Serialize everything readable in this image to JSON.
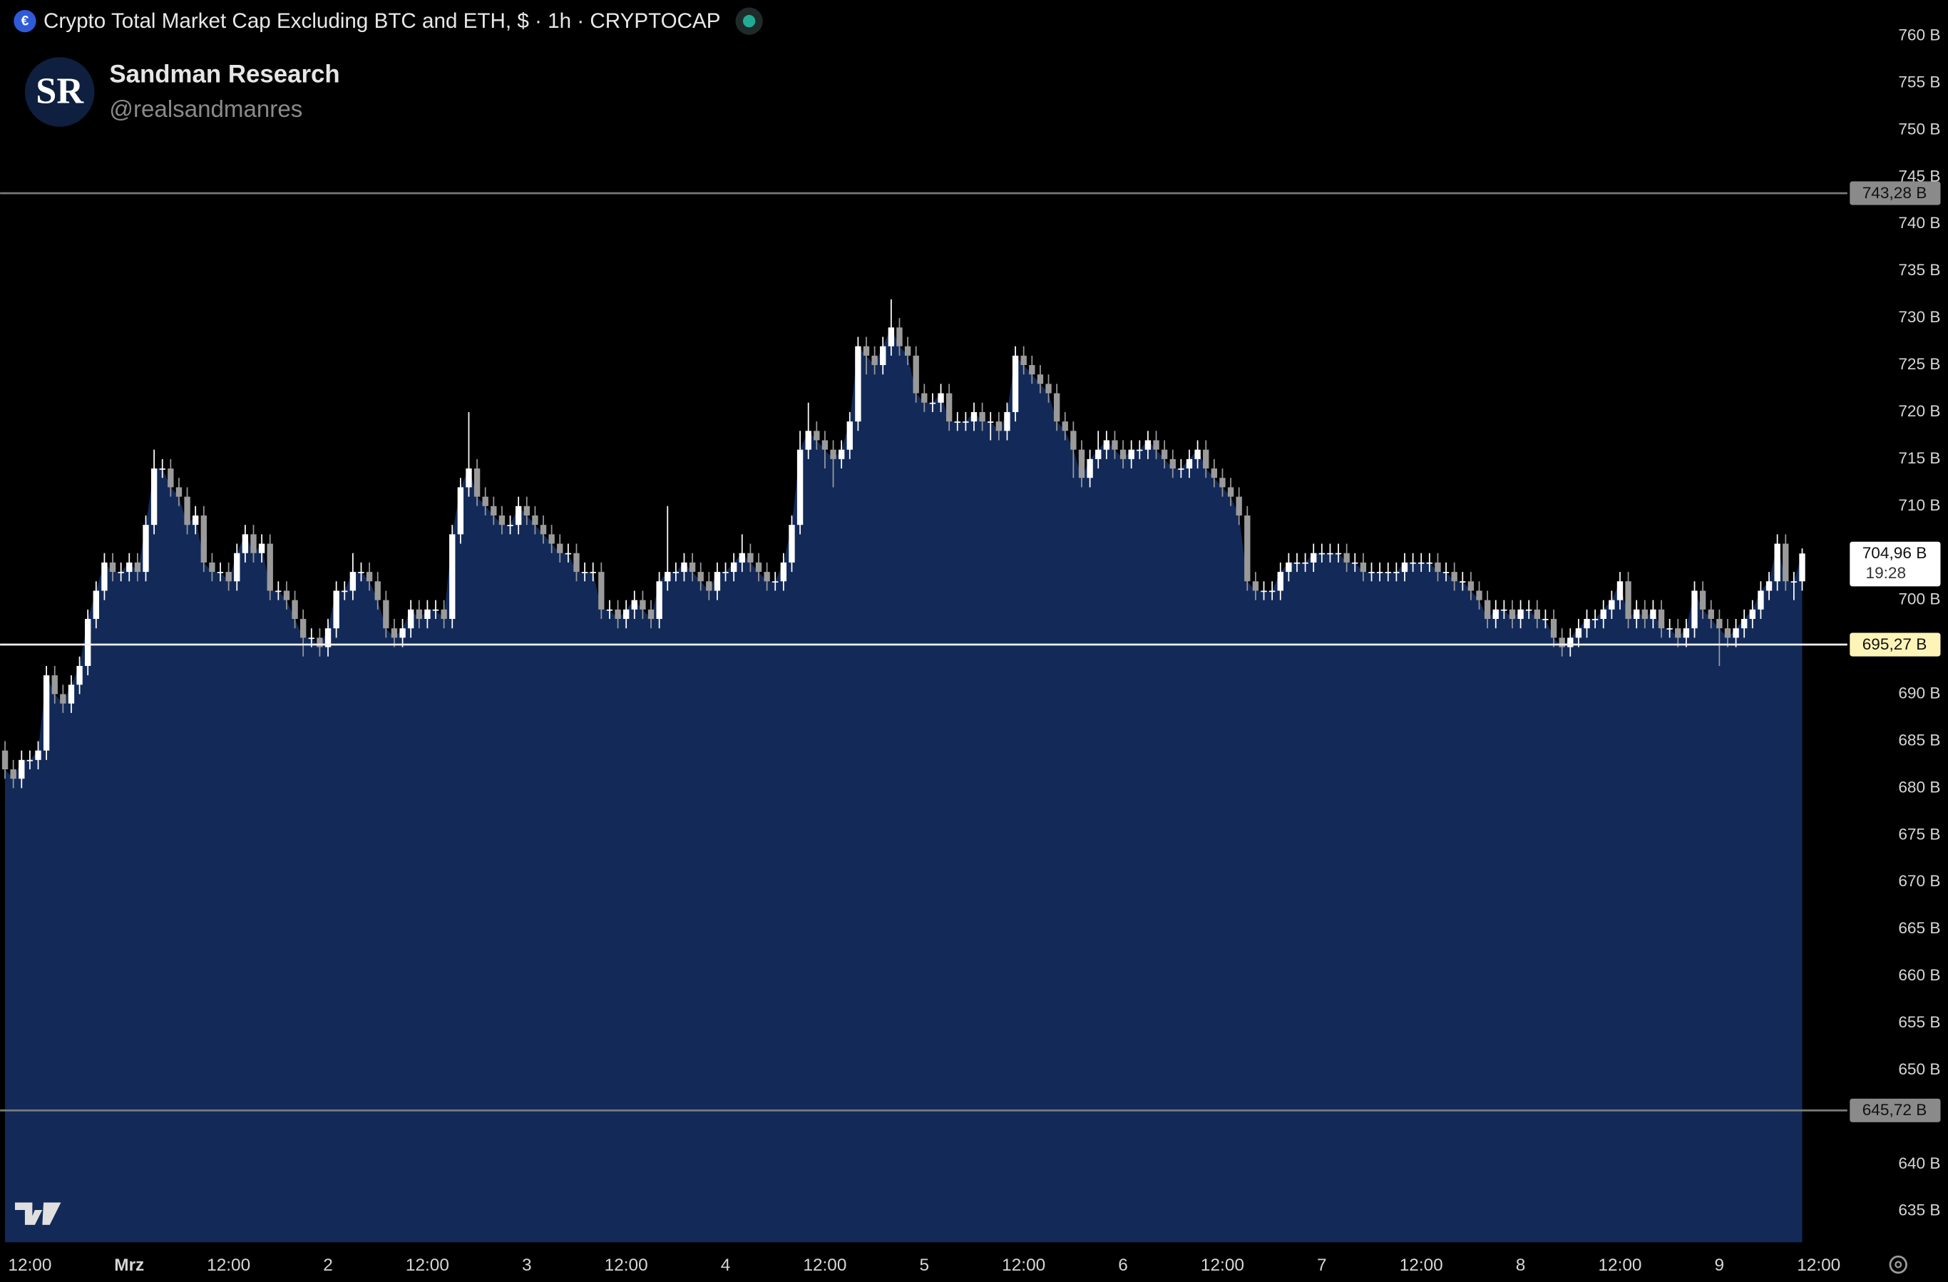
{
  "chart_data": {
    "type": "candlestick",
    "title": "Crypto Total Market Cap Excluding BTC and ETH, $ · 1h · CRYPTOCAP",
    "author": "Sandman Research",
    "handle": "@realsandmanres",
    "up_color": "#ffffff",
    "down_color": "#9a9a9a",
    "area_color": "#132a58",
    "open": [
      684,
      682,
      681,
      683,
      683,
      684,
      692,
      690,
      689,
      691,
      693,
      698,
      701,
      704,
      703,
      703,
      704,
      703,
      708,
      714,
      714,
      712,
      711,
      708,
      709,
      704,
      703,
      703,
      702,
      705,
      707,
      705,
      706,
      701,
      701,
      700,
      698,
      696,
      696,
      695,
      697,
      701,
      701,
      703,
      703,
      702,
      700,
      697,
      696,
      697,
      699,
      698,
      699,
      699,
      698,
      707,
      712,
      714,
      711,
      710,
      709,
      708,
      708,
      710,
      709,
      708,
      707,
      706,
      705,
      705,
      703,
      703,
      703,
      699,
      699,
      698,
      699,
      700,
      699,
      698,
      702,
      703,
      703,
      704,
      703,
      702,
      701,
      703,
      703,
      704,
      705,
      704,
      703,
      702,
      702,
      704,
      708,
      716,
      718,
      717,
      716,
      715,
      716,
      719,
      727,
      726,
      725,
      727,
      729,
      727,
      726,
      722,
      721,
      721,
      722,
      719,
      719,
      719,
      720,
      719,
      719,
      718,
      720,
      726,
      725,
      724,
      723,
      722,
      719,
      718,
      716,
      713,
      715,
      716,
      717,
      716,
      715,
      716,
      716,
      717,
      716,
      715,
      714,
      714,
      715,
      716,
      714,
      713,
      712,
      711,
      709,
      702,
      701,
      701,
      701,
      703,
      704,
      704,
      704,
      705,
      705,
      705,
      705,
      704,
      704,
      703,
      703,
      703,
      703,
      703,
      704,
      704,
      704,
      704,
      703,
      703,
      702,
      702,
      701,
      700,
      698,
      699,
      699,
      698,
      699,
      699,
      698,
      698,
      696,
      695,
      696,
      697,
      698,
      698,
      699,
      700,
      702,
      698,
      699,
      698,
      699,
      697,
      697,
      696,
      697,
      701,
      699,
      698,
      697,
      696,
      697,
      698,
      699,
      701,
      702,
      706,
      702,
      702
    ],
    "high": [
      685,
      683,
      684,
      684,
      685,
      693,
      693,
      691,
      692,
      694,
      699,
      702,
      705,
      705,
      704,
      705,
      705,
      709,
      716,
      715,
      715,
      713,
      712,
      710,
      710,
      705,
      704,
      704,
      706,
      708,
      708,
      707,
      707,
      702,
      702,
      701,
      699,
      697,
      697,
      698,
      702,
      702,
      705,
      704,
      704,
      703,
      701,
      698,
      698,
      700,
      700,
      700,
      700,
      700,
      708,
      713,
      720,
      715,
      712,
      711,
      710,
      709,
      711,
      711,
      710,
      709,
      708,
      707,
      706,
      706,
      704,
      704,
      704,
      700,
      700,
      700,
      701,
      701,
      700,
      703,
      710,
      704,
      705,
      705,
      704,
      703,
      704,
      704,
      705,
      707,
      706,
      705,
      704,
      703,
      705,
      709,
      718,
      721,
      719,
      718,
      717,
      717,
      720,
      728,
      728,
      727,
      728,
      732,
      730,
      728,
      727,
      723,
      722,
      723,
      723,
      720,
      720,
      721,
      721,
      720,
      720,
      721,
      727,
      727,
      726,
      725,
      724,
      723,
      720,
      719,
      717,
      716,
      718,
      718,
      718,
      717,
      717,
      717,
      718,
      718,
      717,
      716,
      715,
      716,
      717,
      717,
      715,
      714,
      713,
      712,
      710,
      703,
      702,
      702,
      704,
      705,
      705,
      705,
      706,
      706,
      706,
      706,
      706,
      705,
      705,
      704,
      704,
      704,
      704,
      705,
      705,
      705,
      705,
      705,
      704,
      704,
      703,
      703,
      702,
      701,
      700,
      700,
      700,
      700,
      700,
      700,
      699,
      699,
      697,
      697,
      698,
      699,
      699,
      700,
      701,
      703,
      703,
      700,
      700,
      700,
      700,
      698,
      698,
      698,
      702,
      702,
      700,
      699,
      698,
      698,
      699,
      700,
      702,
      703,
      707,
      707,
      703,
      705.5
    ],
    "low": [
      681,
      680,
      680,
      682,
      682,
      683,
      689,
      688,
      688,
      690,
      692,
      697,
      700,
      702,
      702,
      702,
      702,
      702,
      707,
      713,
      711,
      710,
      707,
      707,
      703,
      702,
      702,
      701,
      701,
      704,
      704,
      704,
      700,
      700,
      699,
      697,
      694,
      695,
      694,
      694,
      696,
      700,
      700,
      702,
      701,
      699,
      696,
      695,
      695,
      696,
      697,
      697,
      698,
      697,
      697,
      706,
      711,
      710,
      709,
      708,
      707,
      707,
      707,
      708,
      707,
      706,
      705,
      704,
      704,
      702,
      702,
      702,
      698,
      698,
      697,
      697,
      698,
      698,
      697,
      697,
      701,
      702,
      702,
      702,
      701,
      700,
      700,
      702,
      702,
      703,
      703,
      702,
      701,
      701,
      701,
      703,
      707,
      715,
      716,
      714,
      712,
      714,
      715,
      718,
      724,
      724,
      724,
      726,
      726,
      725,
      721,
      720,
      720,
      720,
      718,
      718,
      718,
      718,
      718,
      717,
      717,
      717,
      719,
      724,
      723,
      722,
      721,
      718,
      717,
      713,
      712,
      712,
      714,
      715,
      715,
      714,
      714,
      715,
      715,
      715,
      714,
      713,
      713,
      713,
      714,
      713,
      712,
      711,
      710,
      708,
      701,
      700,
      700,
      700,
      700,
      702,
      703,
      703,
      703,
      704,
      704,
      704,
      703,
      703,
      702,
      702,
      702,
      702,
      702,
      702,
      703,
      703,
      703,
      702,
      702,
      701,
      701,
      700,
      699,
      697,
      697,
      698,
      697,
      697,
      698,
      697,
      697,
      695,
      694,
      694,
      695,
      696,
      697,
      697,
      698,
      699,
      697,
      697,
      697,
      697,
      696,
      696,
      695,
      695,
      696,
      698,
      697,
      693,
      695,
      695,
      696,
      697,
      698,
      700,
      701,
      701,
      700,
      701
    ],
    "close": [
      682,
      681,
      683,
      683,
      684,
      692,
      690,
      689,
      691,
      693,
      698,
      701,
      704,
      703,
      703,
      704,
      703,
      708,
      714,
      714,
      712,
      711,
      708,
      709,
      704,
      703,
      703,
      702,
      705,
      707,
      705,
      706,
      701,
      701,
      700,
      698,
      696,
      696,
      695,
      697,
      701,
      701,
      703,
      703,
      702,
      700,
      697,
      696,
      697,
      699,
      698,
      699,
      699,
      698,
      707,
      712,
      714,
      711,
      710,
      709,
      708,
      708,
      710,
      709,
      708,
      707,
      706,
      705,
      705,
      703,
      703,
      703,
      699,
      699,
      698,
      699,
      700,
      699,
      698,
      702,
      703,
      703,
      704,
      703,
      702,
      701,
      703,
      703,
      704,
      705,
      704,
      703,
      702,
      702,
      704,
      708,
      716,
      718,
      717,
      716,
      715,
      716,
      719,
      727,
      726,
      725,
      727,
      729,
      727,
      726,
      722,
      721,
      721,
      722,
      719,
      719,
      719,
      720,
      719,
      719,
      718,
      720,
      726,
      725,
      724,
      723,
      722,
      719,
      718,
      716,
      713,
      715,
      716,
      717,
      716,
      715,
      716,
      716,
      717,
      716,
      715,
      714,
      714,
      715,
      716,
      714,
      713,
      712,
      711,
      709,
      702,
      701,
      701,
      701,
      703,
      704,
      704,
      704,
      705,
      705,
      705,
      705,
      704,
      704,
      703,
      703,
      703,
      703,
      703,
      704,
      704,
      704,
      704,
      703,
      703,
      702,
      702,
      701,
      700,
      698,
      699,
      699,
      698,
      699,
      699,
      698,
      698,
      696,
      695,
      696,
      697,
      698,
      698,
      699,
      700,
      702,
      698,
      699,
      698,
      699,
      697,
      697,
      696,
      697,
      701,
      699,
      698,
      697,
      696,
      697,
      698,
      699,
      701,
      702,
      706,
      702,
      702,
      704.96
    ],
    "last_price_label": "704,96 B",
    "countdown": "19:28",
    "levels": [
      {
        "value": 743.28,
        "label": "743,28 B",
        "color": "#7a7a7a",
        "label_bg": "#8a8a8a"
      },
      {
        "value": 695.27,
        "label": "695,27 B",
        "color": "#f0f0f0",
        "label_bg": "#fff4b8"
      },
      {
        "value": 645.72,
        "label": "645,72 B",
        "color": "#7a7a7a",
        "label_bg": "#8a8a8a"
      }
    ],
    "xticks": [
      "12:00",
      "Mrz",
      "12:00",
      "2",
      "12:00",
      "3",
      "12:00",
      "4",
      "12:00",
      "5",
      "12:00",
      "6",
      "12:00",
      "7",
      "12:00",
      "8",
      "12:00",
      "9",
      "12:00"
    ],
    "ylim": [
      631.7,
      763.83
    ],
    "yticks": [
      {
        "value": 760,
        "label": "760 B"
      },
      {
        "value": 755,
        "label": "755 B"
      },
      {
        "value": 750,
        "label": "750 B"
      },
      {
        "value": 745,
        "label": "745 B"
      },
      {
        "value": 740,
        "label": "740 B"
      },
      {
        "value": 735,
        "label": "735 B"
      },
      {
        "value": 730,
        "label": "730 B"
      },
      {
        "value": 725,
        "label": "725 B"
      },
      {
        "value": 720,
        "label": "720 B"
      },
      {
        "value": 715,
        "label": "715 B"
      },
      {
        "value": 710,
        "label": "710 B"
      },
      {
        "value": 705,
        "label": "705 B"
      },
      {
        "value": 700,
        "label": "700 B"
      },
      {
        "value": 695,
        "label": "695 B"
      },
      {
        "value": 690,
        "label": "690 B"
      },
      {
        "value": 685,
        "label": "685 B"
      },
      {
        "value": 680,
        "label": "680 B"
      },
      {
        "value": 675,
        "label": "675 B"
      },
      {
        "value": 670,
        "label": "670 B"
      },
      {
        "value": 665,
        "label": "665 B"
      },
      {
        "value": 660,
        "label": "660 B"
      },
      {
        "value": 655,
        "label": "655 B"
      },
      {
        "value": 650,
        "label": "650 B"
      },
      {
        "value": 645,
        "label": "645 B"
      },
      {
        "value": 640,
        "label": "640 B"
      },
      {
        "value": 635,
        "label": "635 B"
      }
    ]
  }
}
